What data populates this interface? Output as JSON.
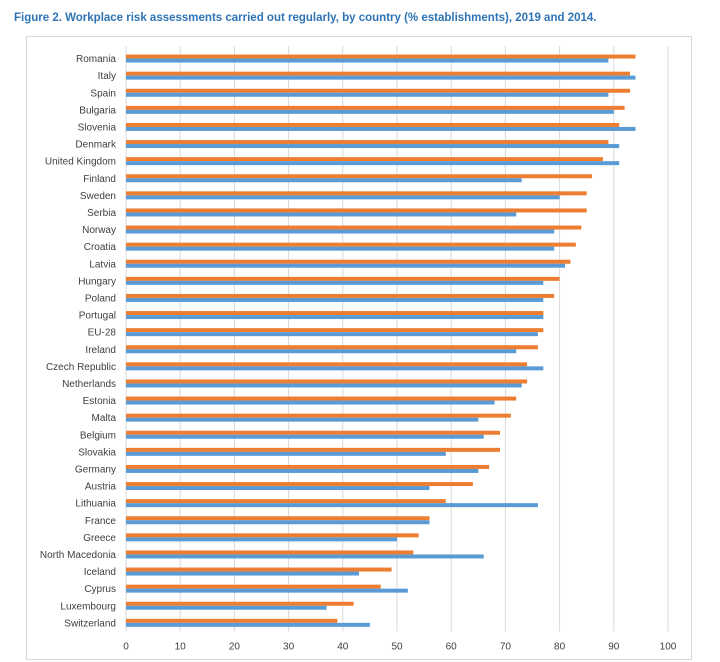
{
  "figure": {
    "title": "Figure 2. Workplace risk assessments carried out regularly, by country (% establishments), 2019 and 2014."
  },
  "chart_data": {
    "type": "bar",
    "orientation": "horizontal",
    "title": "Figure 2. Workplace risk assessments carried out regularly, by country (% establishments), 2019 and 2014.",
    "xlabel": "",
    "ylabel": "",
    "xlim": [
      0,
      100
    ],
    "x_ticks": [
      "0",
      "10",
      "20",
      "30",
      "40",
      "50",
      "60",
      "70",
      "80",
      "90",
      "100"
    ],
    "grid": true,
    "legend": "none",
    "categories": [
      "Romania",
      "Italy",
      "Spain",
      "Bulgaria",
      "Slovenia",
      "Denmark",
      "United Kingdom",
      "Finland",
      "Sweden",
      "Serbia",
      "Norway",
      "Croatia",
      "Latvia",
      "Hungary",
      "Poland",
      "Portugal",
      "EU-28",
      "Ireland",
      "Czech Republic",
      "Netherlands",
      "Estonia",
      "Malta",
      "Belgium",
      "Slovakia",
      "Germany",
      "Austria",
      "Lithuania",
      "France",
      "Greece",
      "North Macedonia",
      "Iceland",
      "Cyprus",
      "Luxembourg",
      "Switzerland"
    ],
    "series": [
      {
        "color": "#ed7d31",
        "values": [
          94,
          93,
          93,
          92,
          91,
          89,
          88,
          86,
          85,
          85,
          84,
          83,
          82,
          80,
          79,
          77,
          77,
          76,
          74,
          74,
          72,
          71,
          69,
          69,
          67,
          64,
          59,
          56,
          54,
          53,
          49,
          47,
          42,
          39
        ]
      },
      {
        "color": "#5b9bd5",
        "values": [
          89,
          94,
          89,
          90,
          94,
          91,
          91,
          73,
          80,
          72,
          79,
          79,
          81,
          77,
          77,
          77,
          76,
          72,
          77,
          73,
          68,
          65,
          66,
          59,
          65,
          56,
          76,
          56,
          50,
          66,
          43,
          52,
          37,
          45
        ]
      }
    ]
  }
}
